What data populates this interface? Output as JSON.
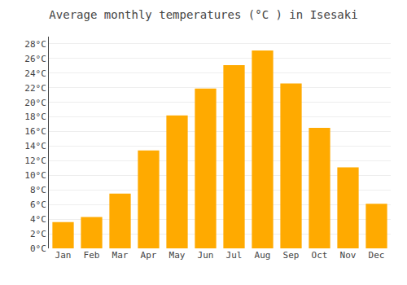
{
  "chart_data": {
    "type": "bar",
    "title": "Average monthly temperatures (°C ) in Isesaki",
    "categories": [
      "Jan",
      "Feb",
      "Mar",
      "Apr",
      "May",
      "Jun",
      "Jul",
      "Aug",
      "Sep",
      "Oct",
      "Nov",
      "Dec"
    ],
    "values": [
      3.6,
      4.3,
      7.5,
      13.4,
      18.2,
      21.9,
      25.1,
      27.1,
      22.6,
      16.5,
      11.1,
      6.1
    ],
    "color": "#FFAA00",
    "ylim": [
      0,
      29
    ],
    "yticks": [
      {
        "value": 0,
        "label": "0°C"
      },
      {
        "value": 2,
        "label": "2°C"
      },
      {
        "value": 4,
        "label": "4°C"
      },
      {
        "value": 6,
        "label": "6°C"
      },
      {
        "value": 8,
        "label": "8°C"
      },
      {
        "value": 10,
        "label": "10°C"
      },
      {
        "value": 12,
        "label": "12°C"
      },
      {
        "value": 14,
        "label": "14°C"
      },
      {
        "value": 16,
        "label": "16°C"
      },
      {
        "value": 18,
        "label": "18°C"
      },
      {
        "value": 20,
        "label": "20°C"
      },
      {
        "value": 22,
        "label": "22°C"
      },
      {
        "value": 24,
        "label": "24°C"
      },
      {
        "value": 26,
        "label": "26°C"
      },
      {
        "value": 28,
        "label": "28°C"
      }
    ],
    "grid": true
  }
}
